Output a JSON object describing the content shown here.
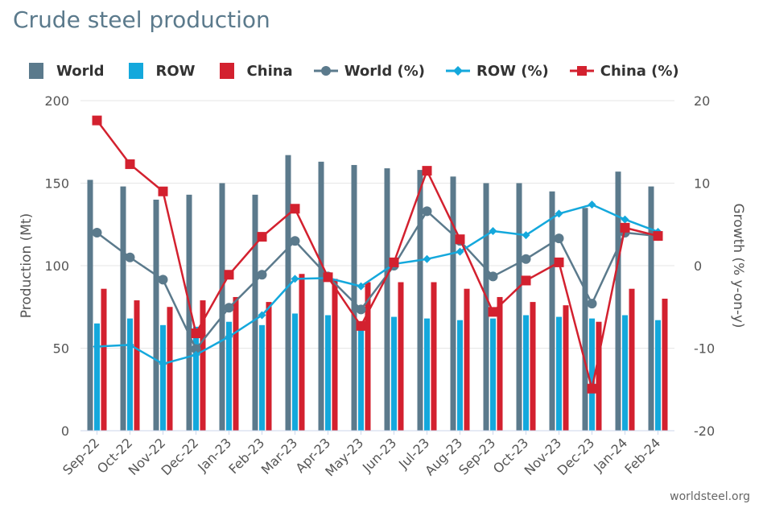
{
  "title": "Crude steel production",
  "source": "worldsteel.org",
  "colors": {
    "world": "#5b7a8c",
    "row": "#14a8dc",
    "china": "#d3212f",
    "grid": "#e6e6e6"
  },
  "legend": [
    {
      "label": "World",
      "key": "world",
      "kind": "bar"
    },
    {
      "label": "ROW",
      "key": "row",
      "kind": "bar"
    },
    {
      "label": "China",
      "key": "china",
      "kind": "bar"
    },
    {
      "label": "World (%)",
      "key": "world",
      "kind": "line-circle"
    },
    {
      "label": "ROW (%)",
      "key": "row",
      "kind": "line-diamond"
    },
    {
      "label": "China (%)",
      "key": "china",
      "kind": "line-square"
    }
  ],
  "chart_data": {
    "type": "bar+line",
    "title": "Crude steel production",
    "categories": [
      "Sep-22",
      "Oct-22",
      "Nov-22",
      "Dec-22",
      "Jan-23",
      "Feb-23",
      "Mar-23",
      "Apr-23",
      "May-23",
      "Jun-23",
      "Jul-23",
      "Aug-23",
      "Sep-23",
      "Oct-23",
      "Nov-23",
      "Dec-23",
      "Jan-24",
      "Feb-24"
    ],
    "ylabel": "Production (Mt)",
    "ylabel_right": "Growth (% y-on-y)",
    "ylim": [
      0,
      200
    ],
    "yticks": [
      0,
      50,
      100,
      150,
      200
    ],
    "ylim_right": [
      -20,
      20
    ],
    "yticks_right": [
      -20,
      -10,
      0,
      10,
      20
    ],
    "bar_series": [
      {
        "name": "World",
        "key": "world",
        "values": [
          152,
          148,
          140,
          143,
          150,
          143,
          167,
          163,
          161,
          159,
          158,
          154,
          150,
          150,
          145,
          135,
          157,
          148
        ]
      },
      {
        "name": "ROW",
        "key": "row",
        "values": [
          65,
          68,
          64,
          63,
          66,
          64,
          71,
          70,
          66,
          69,
          68,
          67,
          68,
          70,
          69,
          68,
          70,
          67
        ]
      },
      {
        "name": "China",
        "key": "china",
        "values": [
          86,
          79,
          75,
          79,
          81,
          78,
          95,
          92,
          90,
          90,
          90,
          86,
          81,
          78,
          76,
          66,
          86,
          80
        ]
      }
    ],
    "line_series": [
      {
        "name": "World (%)",
        "key": "world",
        "marker": "circle",
        "values": [
          4.0,
          1.0,
          -1.7,
          -10.1,
          -5.1,
          -1.1,
          3.0,
          -1.3,
          -5.3,
          0.0,
          6.6,
          3.0,
          -1.3,
          0.8,
          3.3,
          -4.6,
          4.0,
          3.6
        ]
      },
      {
        "name": "ROW (%)",
        "key": "row",
        "marker": "diamond",
        "values": [
          -9.8,
          -9.6,
          -11.9,
          -10.8,
          -8.6,
          -6.0,
          -1.6,
          -1.5,
          -2.5,
          0.2,
          0.8,
          1.7,
          4.2,
          3.7,
          6.3,
          7.4,
          5.6,
          4.1
        ]
      },
      {
        "name": "China (%)",
        "key": "china",
        "marker": "square",
        "values": [
          17.6,
          12.3,
          9.0,
          -8.2,
          -1.1,
          3.5,
          6.9,
          -1.4,
          -7.3,
          0.4,
          11.5,
          3.2,
          -5.6,
          -1.8,
          0.4,
          -14.9,
          4.6,
          3.6
        ]
      }
    ]
  }
}
